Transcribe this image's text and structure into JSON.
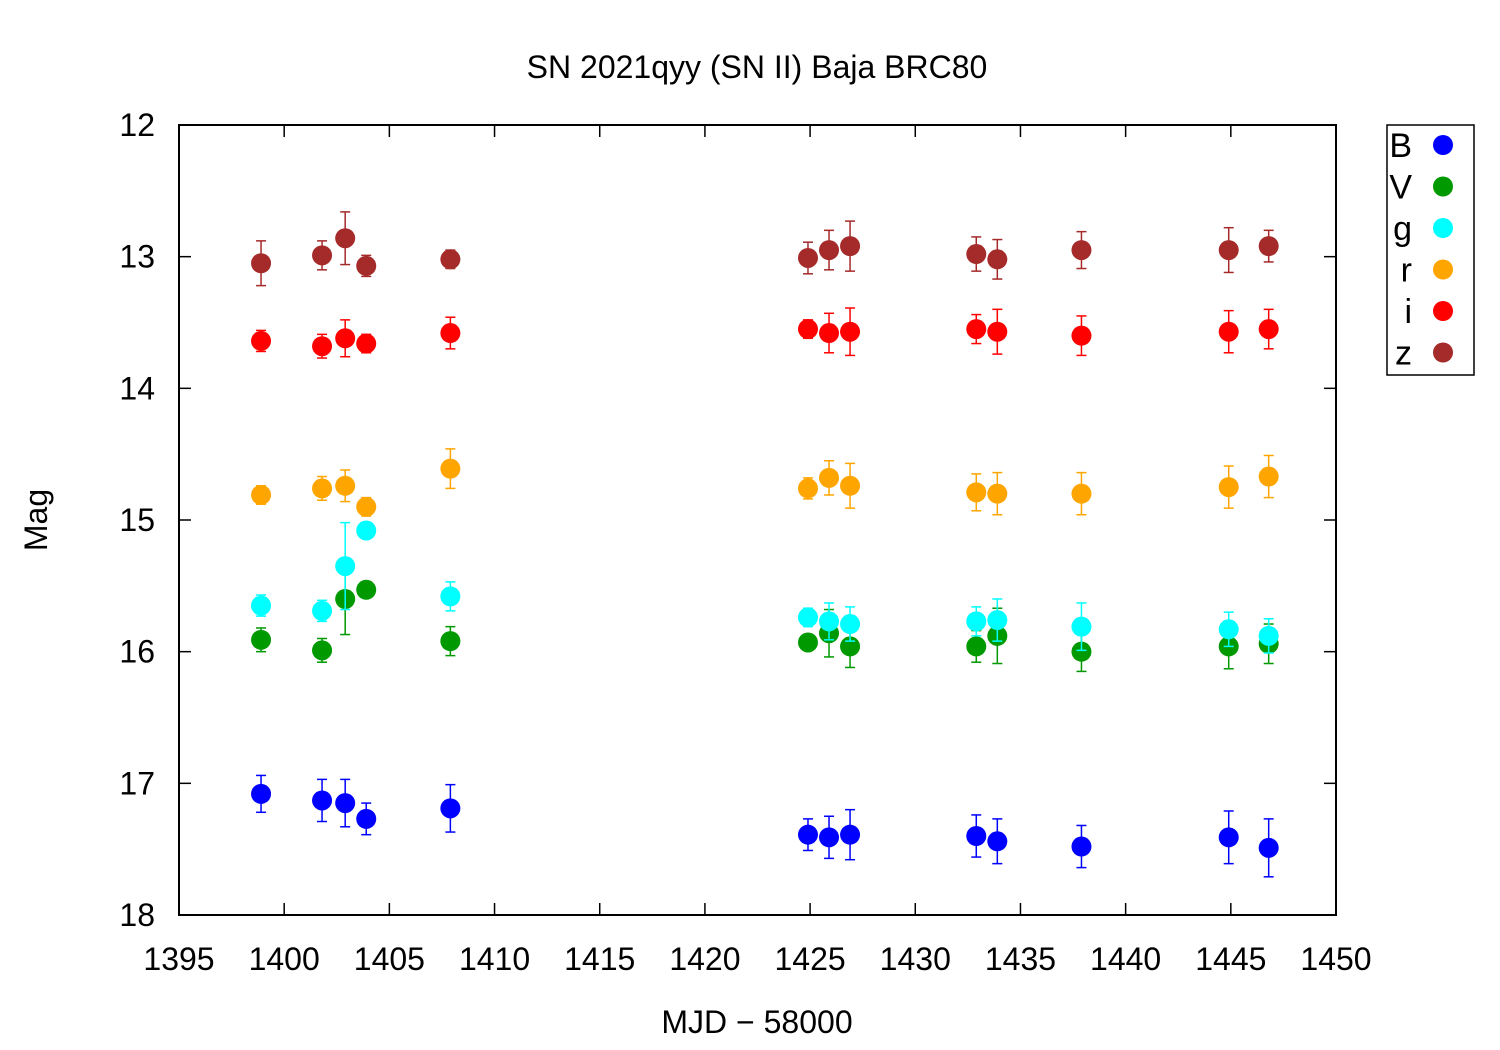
{
  "chart_data": {
    "type": "scatter",
    "title": "SN 2021qyy (SN II) Baja BRC80",
    "xlabel": "MJD − 58000",
    "ylabel": "Mag",
    "xlim": [
      1395,
      1450
    ],
    "ylim": [
      12,
      18
    ],
    "y_inverted": true,
    "x_ticks": [
      1395,
      1400,
      1405,
      1410,
      1415,
      1420,
      1425,
      1430,
      1435,
      1440,
      1445,
      1450
    ],
    "y_ticks": [
      12,
      13,
      14,
      15,
      16,
      17,
      18
    ],
    "grid": false,
    "legend_position": "outside-top-right",
    "series": [
      {
        "name": "B",
        "color": "#0000ff",
        "x": [
          1398.9,
          1401.8,
          1402.9,
          1403.9,
          1407.9,
          1424.9,
          1425.9,
          1426.9,
          1432.9,
          1433.9,
          1437.9,
          1444.9,
          1446.8
        ],
        "y": [
          17.08,
          17.13,
          17.15,
          17.27,
          17.19,
          17.39,
          17.41,
          17.39,
          17.4,
          17.44,
          17.48,
          17.41,
          17.49
        ],
        "err": [
          0.14,
          0.16,
          0.18,
          0.12,
          0.18,
          0.12,
          0.16,
          0.19,
          0.16,
          0.17,
          0.16,
          0.2,
          0.22
        ]
      },
      {
        "name": "V",
        "color": "#009900",
        "x": [
          1398.9,
          1401.8,
          1402.9,
          1403.9,
          1407.9,
          1424.9,
          1425.9,
          1426.9,
          1432.9,
          1433.9,
          1437.9,
          1444.9,
          1446.8
        ],
        "y": [
          15.91,
          15.99,
          15.6,
          15.53,
          15.92,
          15.93,
          15.86,
          15.96,
          15.96,
          15.88,
          16.0,
          15.96,
          15.94
        ],
        "err": [
          0.09,
          0.09,
          0.27,
          0.04,
          0.11,
          0.06,
          0.18,
          0.16,
          0.12,
          0.21,
          0.15,
          0.17,
          0.15
        ]
      },
      {
        "name": "g",
        "color": "#00ffff",
        "x": [
          1398.9,
          1401.8,
          1402.9,
          1403.9,
          1407.9,
          1424.9,
          1425.9,
          1426.9,
          1432.9,
          1433.9,
          1437.9,
          1444.9,
          1446.8
        ],
        "y": [
          15.65,
          15.69,
          15.35,
          15.08,
          15.58,
          15.74,
          15.77,
          15.79,
          15.77,
          15.76,
          15.81,
          15.83,
          15.88
        ],
        "err": [
          0.08,
          0.08,
          0.33,
          0.04,
          0.11,
          0.07,
          0.14,
          0.13,
          0.11,
          0.16,
          0.18,
          0.13,
          0.13
        ]
      },
      {
        "name": "r",
        "color": "#ffa500",
        "x": [
          1398.9,
          1401.8,
          1402.9,
          1403.9,
          1407.9,
          1424.9,
          1425.9,
          1426.9,
          1432.9,
          1433.9,
          1437.9,
          1444.9,
          1446.8
        ],
        "y": [
          14.81,
          14.76,
          14.74,
          14.9,
          14.61,
          14.76,
          14.68,
          14.74,
          14.79,
          14.8,
          14.8,
          14.75,
          14.67
        ],
        "err": [
          0.07,
          0.09,
          0.12,
          0.07,
          0.15,
          0.08,
          0.13,
          0.17,
          0.14,
          0.16,
          0.16,
          0.16,
          0.16
        ]
      },
      {
        "name": "i",
        "color": "#ff0000",
        "x": [
          1398.9,
          1401.8,
          1402.9,
          1403.9,
          1407.9,
          1424.9,
          1425.9,
          1426.9,
          1432.9,
          1433.9,
          1437.9,
          1444.9,
          1446.8
        ],
        "y": [
          13.64,
          13.68,
          13.62,
          13.66,
          13.58,
          13.55,
          13.58,
          13.57,
          13.55,
          13.57,
          13.6,
          13.57,
          13.55
        ],
        "err": [
          0.08,
          0.09,
          0.14,
          0.07,
          0.12,
          0.07,
          0.15,
          0.18,
          0.11,
          0.17,
          0.15,
          0.16,
          0.15
        ]
      },
      {
        "name": "z",
        "color": "#a52a2a",
        "x": [
          1398.9,
          1401.8,
          1402.9,
          1403.9,
          1407.9,
          1424.9,
          1425.9,
          1426.9,
          1432.9,
          1433.9,
          1437.9,
          1444.9,
          1446.8
        ],
        "y": [
          13.05,
          12.99,
          12.86,
          13.07,
          13.02,
          13.01,
          12.95,
          12.92,
          12.98,
          13.02,
          12.95,
          12.95,
          12.92
        ],
        "err": [
          0.17,
          0.11,
          0.2,
          0.08,
          0.07,
          0.12,
          0.15,
          0.19,
          0.13,
          0.15,
          0.14,
          0.17,
          0.12
        ]
      }
    ]
  }
}
